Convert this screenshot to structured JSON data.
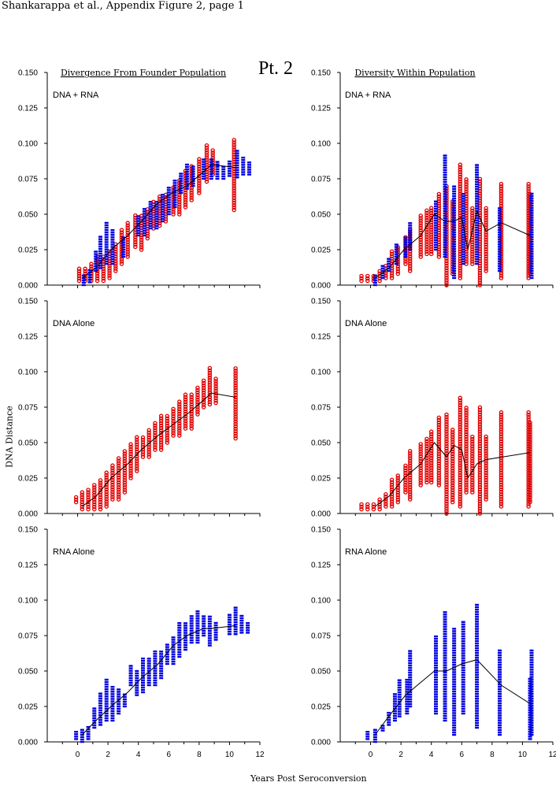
{
  "header": {
    "title": "Shankarappa et al., Appendix Figure 2, page 1"
  },
  "patient_label": "Pt. 2",
  "column_titles": {
    "left": "Divergence From Founder Population",
    "right": "Diversity Within Population"
  },
  "y_axis_label": "DNA Distance",
  "x_axis_label": "Years Post Seroconversion",
  "colors": {
    "dna": "#e00000",
    "rna": "#0000e0",
    "line": "#000000"
  },
  "chart_data": [
    {
      "type": "scatter",
      "panel_label": "DNA + RNA",
      "metric": "divergence",
      "xlim": [
        -2,
        12
      ],
      "ylim": [
        0,
        0.15
      ],
      "xticks": [
        0,
        2,
        4,
        6,
        8,
        10,
        12
      ],
      "yticks": [
        "0.000",
        "0.025",
        "0.050",
        "0.075",
        "0.100",
        "0.125",
        "0.150"
      ],
      "series": [
        {
          "group": "DNA",
          "color": "#e00000",
          "x": [
            0.1,
            0.5,
            0.9,
            1.3,
            1.7,
            2.1,
            2.5,
            2.9,
            3.3,
            3.8,
            4.2,
            4.6,
            5.0,
            5.4,
            5.8,
            6.3,
            6.7,
            7.1,
            7.5,
            8.0,
            8.5,
            8.9,
            10.3
          ],
          "ymin": [
            0.003,
            0.003,
            0.003,
            0.003,
            0.003,
            0.005,
            0.01,
            0.015,
            0.02,
            0.027,
            0.025,
            0.033,
            0.04,
            0.042,
            0.045,
            0.05,
            0.05,
            0.055,
            0.06,
            0.065,
            0.073,
            0.078,
            0.053
          ],
          "ymax": [
            0.012,
            0.012,
            0.015,
            0.02,
            0.02,
            0.025,
            0.03,
            0.04,
            0.045,
            0.05,
            0.05,
            0.055,
            0.06,
            0.063,
            0.065,
            0.07,
            0.075,
            0.082,
            0.085,
            0.09,
            0.1,
            0.095,
            0.103
          ]
        },
        {
          "group": "RNA",
          "color": "#0000e0",
          "x": [
            0.4,
            0.8,
            1.2,
            1.5,
            1.9,
            2.3,
            3.0,
            4.0,
            4.4,
            4.8,
            5.2,
            5.6,
            6.0,
            6.4,
            6.8,
            7.2,
            7.6,
            8.3,
            8.8,
            9.2,
            9.6,
            10.0,
            10.5,
            10.9,
            11.3
          ],
          "ymin": [
            0.0,
            0.002,
            0.01,
            0.012,
            0.015,
            0.015,
            0.02,
            0.035,
            0.035,
            0.04,
            0.04,
            0.045,
            0.05,
            0.055,
            0.065,
            0.068,
            0.07,
            0.075,
            0.075,
            0.075,
            0.075,
            0.077,
            0.076,
            0.078,
            0.078
          ],
          "ymax": [
            0.008,
            0.012,
            0.025,
            0.035,
            0.045,
            0.04,
            0.035,
            0.05,
            0.055,
            0.06,
            0.06,
            0.065,
            0.07,
            0.075,
            0.08,
            0.085,
            0.085,
            0.09,
            0.09,
            0.088,
            0.085,
            0.088,
            0.095,
            0.09,
            0.088
          ]
        }
      ],
      "mean_line": {
        "x": [
          0.3,
          1.2,
          2.2,
          3.3,
          4.2,
          5.2,
          6.2,
          7.2,
          8.3,
          8.8,
          10.4
        ],
        "y": [
          0.005,
          0.012,
          0.025,
          0.035,
          0.045,
          0.057,
          0.065,
          0.07,
          0.08,
          0.085,
          0.083
        ]
      }
    },
    {
      "type": "scatter",
      "panel_label": "DNA + RNA",
      "metric": "diversity",
      "xlim": [
        -2,
        12
      ],
      "ylim": [
        0,
        0.15
      ],
      "xticks": [
        0,
        2,
        4,
        6,
        8,
        10,
        12
      ],
      "yticks": [
        "0.000",
        "0.025",
        "0.050",
        "0.075",
        "0.100",
        "0.125",
        "0.150"
      ],
      "series": [
        {
          "group": "DNA",
          "color": "#e00000",
          "x": [
            -0.6,
            -0.2,
            0.2,
            0.6,
            1.0,
            1.4,
            1.8,
            2.3,
            2.6,
            3.3,
            3.7,
            4.0,
            4.5,
            5.0,
            5.4,
            5.9,
            6.3,
            6.7,
            7.2,
            7.6,
            8.6,
            10.4,
            10.5
          ],
          "ymin": [
            0.003,
            0.003,
            0.003,
            0.003,
            0.005,
            0.005,
            0.008,
            0.015,
            0.01,
            0.02,
            0.022,
            0.022,
            0.02,
            0.0,
            0.008,
            0.005,
            0.015,
            0.015,
            0.0,
            0.01,
            0.005,
            0.005,
            0.008
          ],
          "ymax": [
            0.008,
            0.008,
            0.008,
            0.01,
            0.015,
            0.025,
            0.028,
            0.035,
            0.04,
            0.05,
            0.053,
            0.055,
            0.065,
            0.07,
            0.06,
            0.085,
            0.075,
            0.055,
            0.075,
            0.055,
            0.072,
            0.072,
            0.065
          ]
        },
        {
          "group": "RNA",
          "color": "#0000e0",
          "x": [
            0.3,
            0.8,
            1.2,
            1.7,
            2.3,
            2.6,
            4.3,
            4.9,
            5.5,
            6.1,
            7.0,
            8.5,
            10.6
          ],
          "ymin": [
            0.0,
            0.005,
            0.01,
            0.015,
            0.02,
            0.025,
            0.025,
            0.02,
            0.005,
            0.015,
            0.015,
            0.01,
            0.005
          ],
          "ymax": [
            0.008,
            0.015,
            0.02,
            0.03,
            0.035,
            0.045,
            0.06,
            0.093,
            0.07,
            0.065,
            0.085,
            0.055,
            0.065
          ]
        }
      ],
      "mean_line": {
        "x": [
          0.3,
          1.2,
          2.2,
          3.3,
          4.2,
          4.9,
          5.5,
          6.0,
          6.4,
          7.0,
          7.6,
          8.6,
          10.5
        ],
        "y": [
          0.005,
          0.012,
          0.025,
          0.035,
          0.05,
          0.045,
          0.045,
          0.048,
          0.025,
          0.052,
          0.038,
          0.044,
          0.035
        ]
      }
    },
    {
      "type": "scatter",
      "panel_label": "DNA Alone",
      "metric": "divergence",
      "xlim": [
        -2,
        12
      ],
      "ylim": [
        0,
        0.15
      ],
      "xticks": [
        0,
        2,
        4,
        6,
        8,
        10,
        12
      ],
      "yticks": [
        "0.000",
        "0.025",
        "0.050",
        "0.075",
        "0.100",
        "0.125",
        "0.150"
      ],
      "series": [
        {
          "group": "DNA",
          "color": "#e00000",
          "x": [
            -0.1,
            0.3,
            0.7,
            1.1,
            1.5,
            1.9,
            2.3,
            2.7,
            3.1,
            3.5,
            3.9,
            4.3,
            4.7,
            5.1,
            5.5,
            5.9,
            6.3,
            6.7,
            7.1,
            7.5,
            7.9,
            8.3,
            8.7,
            9.1,
            10.4
          ],
          "ymin": [
            0.008,
            0.003,
            0.003,
            0.003,
            0.003,
            0.005,
            0.01,
            0.01,
            0.015,
            0.025,
            0.03,
            0.04,
            0.04,
            0.045,
            0.045,
            0.05,
            0.055,
            0.055,
            0.06,
            0.06,
            0.07,
            0.075,
            0.077,
            0.078,
            0.053
          ],
          "ymax": [
            0.012,
            0.015,
            0.018,
            0.02,
            0.025,
            0.03,
            0.035,
            0.04,
            0.045,
            0.05,
            0.055,
            0.055,
            0.06,
            0.065,
            0.07,
            0.07,
            0.075,
            0.08,
            0.085,
            0.085,
            0.09,
            0.095,
            0.103,
            0.095,
            0.103
          ]
        }
      ],
      "mean_line": {
        "x": [
          0.3,
          1.2,
          2.2,
          3.3,
          4.2,
          5.3,
          6.3,
          7.2,
          8.3,
          8.8,
          10.4
        ],
        "y": [
          0.005,
          0.012,
          0.025,
          0.035,
          0.045,
          0.055,
          0.063,
          0.07,
          0.08,
          0.085,
          0.082
        ]
      }
    },
    {
      "type": "scatter",
      "panel_label": "DNA Alone",
      "metric": "diversity",
      "xlim": [
        -2,
        12
      ],
      "ylim": [
        0,
        0.15
      ],
      "xticks": [
        0,
        2,
        4,
        6,
        8,
        10,
        12
      ],
      "yticks": [
        "0.000",
        "0.025",
        "0.050",
        "0.075",
        "0.100",
        "0.125",
        "0.150"
      ],
      "series": [
        {
          "group": "DNA",
          "color": "#e00000",
          "x": [
            -0.6,
            -0.2,
            0.2,
            0.6,
            1.0,
            1.4,
            1.8,
            2.3,
            2.6,
            3.3,
            3.7,
            4.0,
            4.5,
            5.0,
            5.4,
            5.9,
            6.3,
            6.7,
            7.2,
            7.6,
            8.6,
            10.4,
            10.5
          ],
          "ymin": [
            0.003,
            0.003,
            0.003,
            0.003,
            0.005,
            0.005,
            0.008,
            0.015,
            0.01,
            0.02,
            0.022,
            0.022,
            0.02,
            0.0,
            0.008,
            0.005,
            0.015,
            0.015,
            0.0,
            0.01,
            0.005,
            0.005,
            0.008
          ],
          "ymax": [
            0.008,
            0.008,
            0.008,
            0.01,
            0.015,
            0.025,
            0.028,
            0.035,
            0.045,
            0.05,
            0.053,
            0.058,
            0.068,
            0.07,
            0.06,
            0.083,
            0.075,
            0.055,
            0.075,
            0.055,
            0.072,
            0.072,
            0.065
          ]
        }
      ],
      "mean_line": {
        "x": [
          0.3,
          1.2,
          2.2,
          3.3,
          4.2,
          5.0,
          5.5,
          6.0,
          6.4,
          7.0,
          7.6,
          10.5
        ],
        "y": [
          0.005,
          0.012,
          0.025,
          0.035,
          0.05,
          0.04,
          0.048,
          0.045,
          0.025,
          0.035,
          0.038,
          0.043
        ]
      }
    },
    {
      "type": "scatter",
      "panel_label": "RNA Alone",
      "metric": "divergence",
      "xlim": [
        -2,
        12
      ],
      "ylim": [
        0,
        0.15
      ],
      "xticks": [
        0,
        2,
        4,
        6,
        8,
        10,
        12
      ],
      "yticks": [
        "0.000",
        "0.025",
        "0.050",
        "0.075",
        "0.100",
        "0.125",
        "0.150"
      ],
      "series": [
        {
          "group": "RNA",
          "color": "#0000e0",
          "x": [
            -0.1,
            0.3,
            0.7,
            1.1,
            1.5,
            1.9,
            2.3,
            2.7,
            3.1,
            3.5,
            3.9,
            4.3,
            4.7,
            5.1,
            5.5,
            5.9,
            6.3,
            6.7,
            7.1,
            7.5,
            7.9,
            8.3,
            8.7,
            9.1,
            10.0,
            10.4,
            10.8,
            11.2
          ],
          "ymin": [
            0.002,
            0.0,
            0.002,
            0.01,
            0.012,
            0.015,
            0.015,
            0.02,
            0.025,
            0.04,
            0.033,
            0.035,
            0.04,
            0.04,
            0.045,
            0.055,
            0.055,
            0.06,
            0.065,
            0.07,
            0.07,
            0.075,
            0.068,
            0.072,
            0.076,
            0.076,
            0.077,
            0.077
          ],
          "ymax": [
            0.008,
            0.01,
            0.012,
            0.025,
            0.035,
            0.045,
            0.04,
            0.038,
            0.035,
            0.055,
            0.05,
            0.06,
            0.06,
            0.065,
            0.065,
            0.07,
            0.075,
            0.085,
            0.085,
            0.09,
            0.093,
            0.09,
            0.09,
            0.085,
            0.09,
            0.096,
            0.09,
            0.085
          ]
        }
      ],
      "mean_line": {
        "x": [
          0.3,
          1.2,
          2.2,
          3.3,
          4.2,
          5.3,
          6.3,
          7.2,
          8.3,
          8.8,
          10.4
        ],
        "y": [
          0.005,
          0.015,
          0.025,
          0.035,
          0.045,
          0.055,
          0.068,
          0.075,
          0.08,
          0.08,
          0.082
        ]
      }
    },
    {
      "type": "scatter",
      "panel_label": "RNA Alone",
      "metric": "diversity",
      "xlim": [
        -2,
        12
      ],
      "ylim": [
        0,
        0.15
      ],
      "xticks": [
        0,
        2,
        4,
        6,
        8,
        10,
        12
      ],
      "yticks": [
        "0.000",
        "0.025",
        "0.050",
        "0.075",
        "0.100",
        "0.125",
        "0.150"
      ],
      "series": [
        {
          "group": "RNA",
          "color": "#0000e0",
          "x": [
            -0.2,
            0.3,
            0.8,
            1.2,
            1.6,
            1.9,
            2.4,
            2.6,
            4.3,
            4.9,
            5.5,
            6.1,
            7.0,
            8.5,
            10.5,
            10.6
          ],
          "ymin": [
            0.002,
            0.0,
            0.008,
            0.012,
            0.015,
            0.018,
            0.02,
            0.025,
            0.02,
            0.015,
            0.005,
            0.02,
            0.01,
            0.005,
            0.002,
            0.005
          ],
          "ymax": [
            0.008,
            0.01,
            0.012,
            0.022,
            0.035,
            0.045,
            0.045,
            0.065,
            0.075,
            0.093,
            0.08,
            0.085,
            0.097,
            0.065,
            0.045,
            0.065
          ]
        }
      ],
      "mean_line": {
        "x": [
          0.3,
          1.2,
          2.3,
          4.2,
          5.0,
          6.0,
          7.0,
          8.6,
          10.5
        ],
        "y": [
          0.005,
          0.018,
          0.033,
          0.05,
          0.05,
          0.055,
          0.058,
          0.04,
          0.027
        ]
      }
    }
  ]
}
